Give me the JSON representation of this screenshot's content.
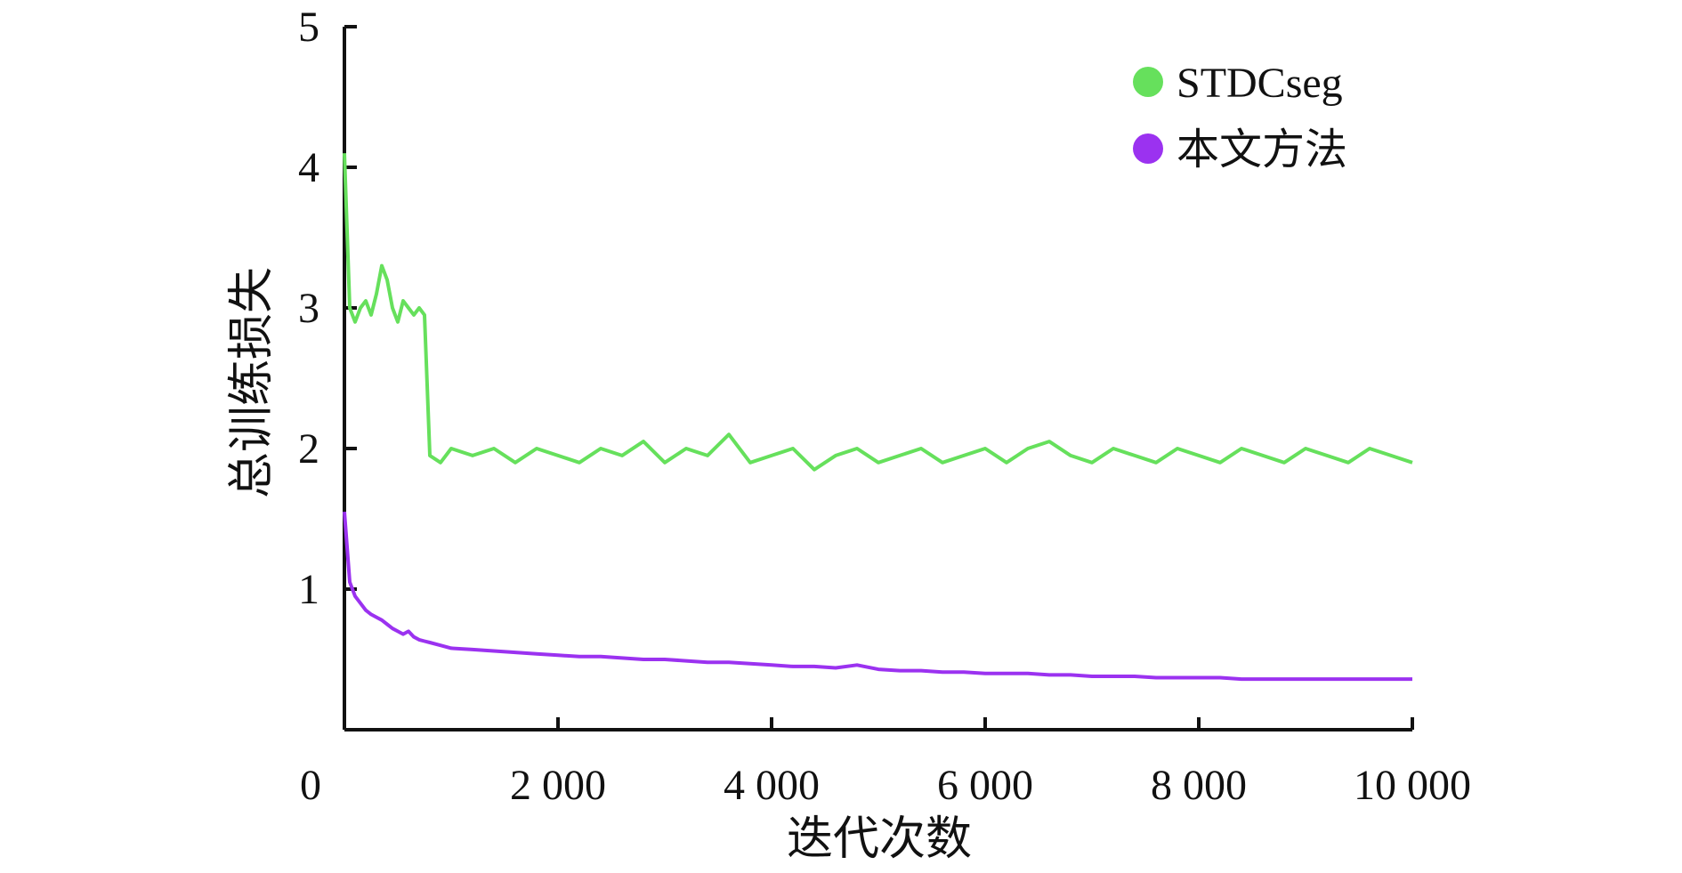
{
  "chart_data": {
    "type": "line",
    "xlabel": "迭代次数",
    "ylabel": "总训练损失",
    "xlim": [
      0,
      10000
    ],
    "ylim": [
      0,
      5
    ],
    "x_ticks": [
      0,
      2000,
      4000,
      6000,
      8000,
      10000
    ],
    "x_tick_labels": [
      "0",
      "2 000",
      "4 000",
      "6 000",
      "8 000",
      "10 000"
    ],
    "y_ticks": [
      1,
      2,
      3,
      4,
      5
    ],
    "y_tick_labels": [
      "1",
      "2",
      "3",
      "4",
      "5"
    ],
    "grid": false,
    "legend_position": "top-right",
    "x": [
      0,
      50,
      100,
      150,
      200,
      250,
      300,
      350,
      400,
      450,
      500,
      550,
      600,
      650,
      700,
      750,
      800,
      900,
      1000,
      1200,
      1400,
      1600,
      1800,
      2000,
      2200,
      2400,
      2600,
      2800,
      3000,
      3200,
      3400,
      3600,
      3800,
      4000,
      4200,
      4400,
      4600,
      4800,
      5000,
      5200,
      5400,
      5600,
      5800,
      6000,
      6200,
      6400,
      6600,
      6800,
      7000,
      7200,
      7400,
      7600,
      7800,
      8000,
      8200,
      8400,
      8600,
      8800,
      9000,
      9200,
      9400,
      9600,
      9800,
      10000
    ],
    "series": [
      {
        "name": "STDCseg",
        "color": "#66e05c",
        "values": [
          4.1,
          3.0,
          2.9,
          3.0,
          3.05,
          2.95,
          3.1,
          3.3,
          3.2,
          3.0,
          2.9,
          3.05,
          3.0,
          2.95,
          3.0,
          2.95,
          1.95,
          1.9,
          2.0,
          1.95,
          2.0,
          1.9,
          2.0,
          1.95,
          1.9,
          2.0,
          1.95,
          2.05,
          1.9,
          2.0,
          1.95,
          2.1,
          1.9,
          1.95,
          2.0,
          1.85,
          1.95,
          2.0,
          1.9,
          1.95,
          2.0,
          1.9,
          1.95,
          2.0,
          1.9,
          2.0,
          2.05,
          1.95,
          1.9,
          2.0,
          1.95,
          1.9,
          2.0,
          1.95,
          1.9,
          2.0,
          1.95,
          1.9,
          2.0,
          1.95,
          1.9,
          2.0,
          1.95,
          1.9
        ]
      },
      {
        "name": "本文方法",
        "color": "#9b32f0",
        "values": [
          1.55,
          1.05,
          0.95,
          0.9,
          0.85,
          0.82,
          0.8,
          0.78,
          0.75,
          0.72,
          0.7,
          0.68,
          0.7,
          0.66,
          0.64,
          0.63,
          0.62,
          0.6,
          0.58,
          0.57,
          0.56,
          0.55,
          0.54,
          0.53,
          0.52,
          0.52,
          0.51,
          0.5,
          0.5,
          0.49,
          0.48,
          0.48,
          0.47,
          0.46,
          0.45,
          0.45,
          0.44,
          0.46,
          0.43,
          0.42,
          0.42,
          0.41,
          0.41,
          0.4,
          0.4,
          0.4,
          0.39,
          0.39,
          0.38,
          0.38,
          0.38,
          0.37,
          0.37,
          0.37,
          0.37,
          0.36,
          0.36,
          0.36,
          0.36,
          0.36,
          0.36,
          0.36,
          0.36,
          0.36
        ]
      }
    ]
  }
}
